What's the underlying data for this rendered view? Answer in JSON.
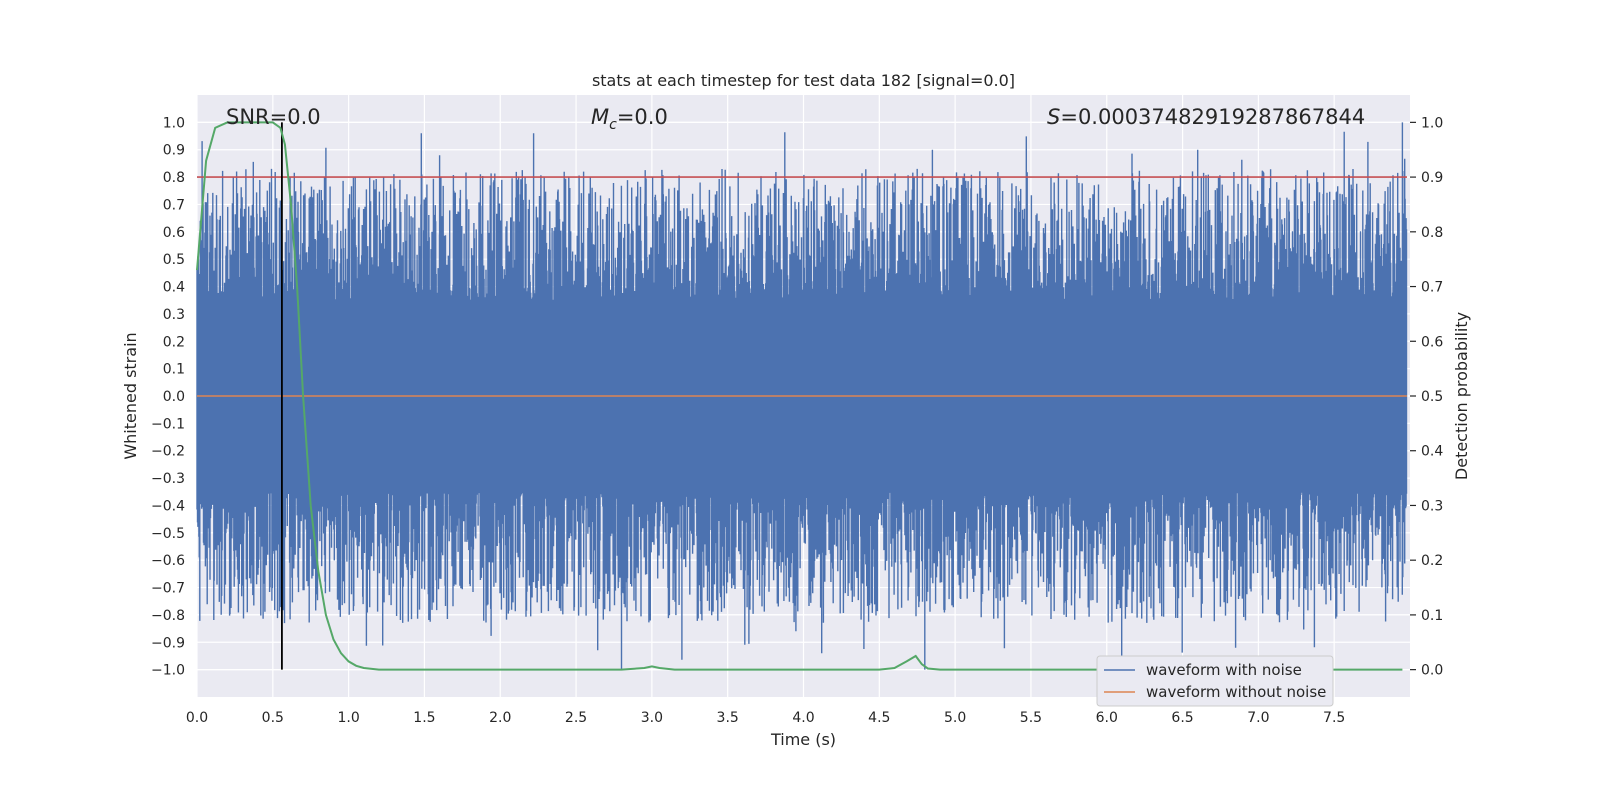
{
  "chart_data": {
    "type": "line",
    "title": "stats at each timestep for test data 182 [signal=0.0]",
    "xlabel": "Time (s)",
    "ylabel": "Whitened strain",
    "y2label": "Detection probability",
    "xlim": [
      0.0,
      8.0
    ],
    "ylim": [
      -1.1,
      1.1
    ],
    "y2lim": [
      -0.05,
      1.05
    ],
    "grid": true,
    "x_ticks": [
      "0.0",
      "0.5",
      "1.0",
      "1.5",
      "2.0",
      "2.5",
      "3.0",
      "3.5",
      "4.0",
      "4.5",
      "5.0",
      "5.5",
      "6.0",
      "6.5",
      "7.0",
      "7.5"
    ],
    "y_ticks": [
      "1.0",
      "0.9",
      "0.8",
      "0.7",
      "0.6",
      "0.5",
      "0.4",
      "0.3",
      "0.2",
      "0.1",
      "0.0",
      "−0.1",
      "−0.2",
      "−0.3",
      "−0.4",
      "−0.5",
      "−0.6",
      "−0.7",
      "−0.8",
      "−0.9",
      "−1.0"
    ],
    "y2_ticks": [
      "1.0",
      "0.9",
      "0.8",
      "0.7",
      "0.6",
      "0.5",
      "0.4",
      "0.3",
      "0.2",
      "0.1",
      "0.0"
    ],
    "annotations": {
      "snr": "SNR=0.0",
      "mc_symbol": "M",
      "mc_sub": "c",
      "mc_value": "=0.0",
      "s_symbol": "S",
      "s_value": "=0.00037482919287867844"
    },
    "threshold": 0.8,
    "marker_time": 0.56,
    "noise_band": {
      "typical_high": 0.35,
      "typical_low": -0.35,
      "peak_max": 1.0,
      "peak_min": -1.0,
      "description": "dense noise trace, approx 0.0–8.0 s"
    },
    "series": [
      {
        "name": "waveform with noise",
        "color": "#4c72b0",
        "kind": "noise-trace"
      },
      {
        "name": "waveform without noise",
        "color": "#dd8452",
        "values": [
          0.0,
          0.0
        ]
      },
      {
        "name": "detection probability",
        "color": "#55a868",
        "axis": "right",
        "x": [
          0.0,
          0.06,
          0.12,
          0.2,
          0.3,
          0.4,
          0.5,
          0.55,
          0.58,
          0.62,
          0.66,
          0.7,
          0.75,
          0.8,
          0.85,
          0.9,
          0.95,
          1.0,
          1.05,
          1.1,
          1.2,
          1.5,
          2.0,
          2.5,
          2.8,
          2.95,
          3.0,
          3.05,
          3.15,
          3.5,
          4.0,
          4.5,
          4.6,
          4.68,
          4.74,
          4.78,
          4.82,
          4.9,
          5.5,
          6.0,
          7.0,
          7.95
        ],
        "values": [
          0.73,
          0.93,
          0.99,
          1.0,
          1.0,
          1.0,
          1.0,
          0.99,
          0.96,
          0.85,
          0.7,
          0.5,
          0.3,
          0.18,
          0.1,
          0.055,
          0.03,
          0.015,
          0.007,
          0.003,
          0.0,
          0.0,
          0.0,
          0.0,
          0.0,
          0.003,
          0.006,
          0.003,
          0.0,
          0.0,
          0.0,
          0.0,
          0.003,
          0.015,
          0.025,
          0.01,
          0.002,
          0.0,
          0.0,
          0.0,
          0.0,
          0.0
        ]
      }
    ]
  }
}
